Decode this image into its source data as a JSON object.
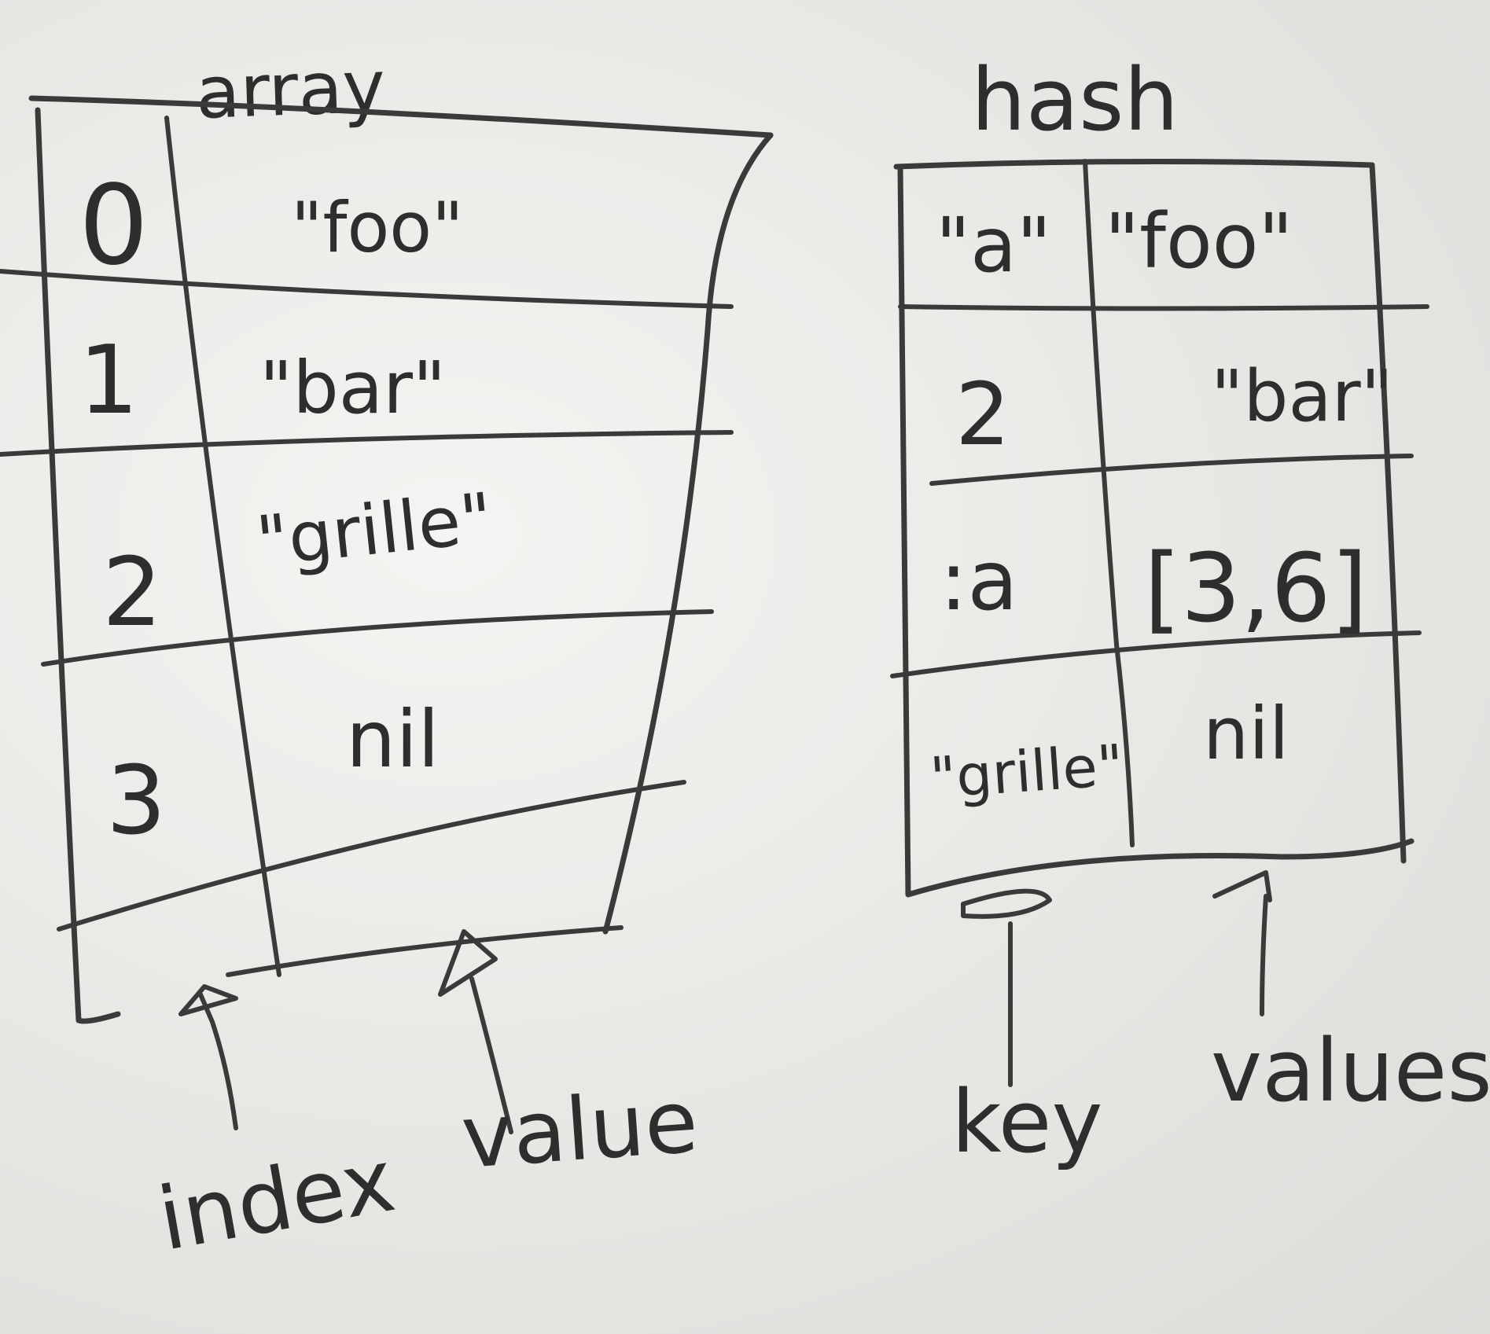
{
  "array": {
    "title": "array",
    "rows": [
      {
        "index": "0",
        "value": "\"foo\""
      },
      {
        "index": "1",
        "value": "\"bar\""
      },
      {
        "index": "2",
        "value": "\"grille\""
      },
      {
        "index": "3",
        "value": "nil"
      },
      {
        "index": "",
        "value": ""
      }
    ],
    "labels": {
      "index": "index",
      "value": "value"
    }
  },
  "hash": {
    "title": "hash",
    "rows": [
      {
        "key": "\"a\"",
        "value": "\"foo\""
      },
      {
        "key": "2",
        "value": "\"bar\""
      },
      {
        "key": ":a",
        "value": "[3,6]"
      },
      {
        "key": "\"grille\"",
        "value": "nil"
      }
    ],
    "labels": {
      "key": "key",
      "value": "values"
    }
  },
  "colors": {
    "ink": "#3a3a3a",
    "board": "#e9e9e6"
  }
}
